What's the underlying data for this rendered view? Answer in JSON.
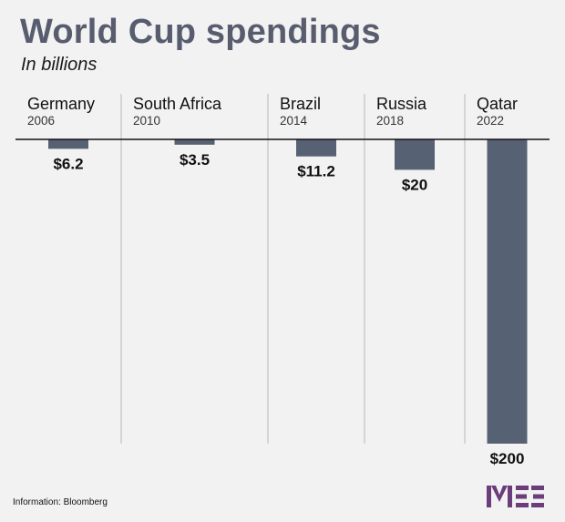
{
  "header": {
    "title": "World Cup spendings",
    "subtitle": "In billions"
  },
  "source": "Information: Bloomberg",
  "logo_text": "MEE",
  "colors": {
    "bar": "#566173",
    "title": "#575c6e",
    "logo": "#6b3d7a",
    "background": "#f2f2f2"
  },
  "chart_data": {
    "type": "bar",
    "orientation": "downward",
    "title": "World Cup spendings",
    "subtitle": "In billions",
    "categories": [
      "Germany",
      "South Africa",
      "Brazil",
      "Russia",
      "Qatar"
    ],
    "years": [
      "2006",
      "2010",
      "2014",
      "2018",
      "2022"
    ],
    "values": [
      6.2,
      3.5,
      11.2,
      20,
      200
    ],
    "labels": [
      "$6.2",
      "$3.5",
      "$11.2",
      "$20",
      "$200"
    ],
    "unit": "billions of dollars",
    "ylim": [
      0,
      200
    ]
  }
}
